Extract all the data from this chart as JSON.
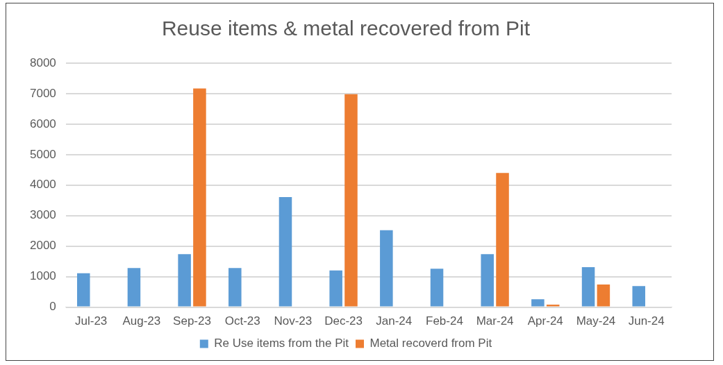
{
  "chart_data": {
    "type": "bar",
    "title": "Reuse items & metal recovered from Pit",
    "categories": [
      "Jul-23",
      "Aug-23",
      "Sep-23",
      "Oct-23",
      "Nov-23",
      "Dec-23",
      "Jan-24",
      "Feb-24",
      "Mar-24",
      "Apr-24",
      "May-24",
      "Jun-24"
    ],
    "series": [
      {
        "name": "Re Use items from the Pit",
        "color": "#5b9bd5",
        "values": [
          1110,
          1280,
          1740,
          1280,
          3610,
          1200,
          2520,
          1260,
          1740,
          260,
          1310,
          690
        ]
      },
      {
        "name": "Metal recoverd from Pit",
        "color": "#ed7d31",
        "values": [
          null,
          null,
          7170,
          null,
          null,
          6980,
          null,
          null,
          4400,
          80,
          740,
          null
        ]
      }
    ],
    "ylim": [
      0,
      8000
    ],
    "yticks": [
      0,
      1000,
      2000,
      3000,
      4000,
      5000,
      6000,
      7000,
      8000
    ],
    "grid": "y",
    "legend": "bottom"
  }
}
